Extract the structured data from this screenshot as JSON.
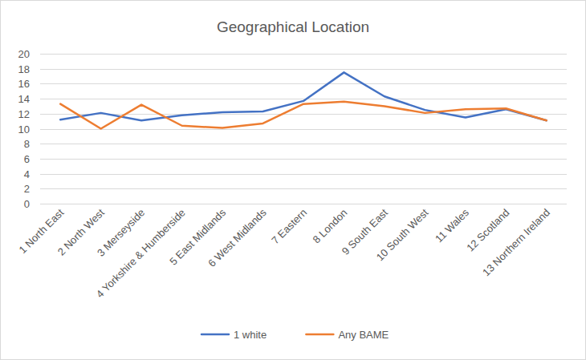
{
  "chart_data": {
    "type": "line",
    "title": "Geographical Location",
    "categories": [
      "1 North East",
      "2 North West",
      "3 Merseyside",
      "4 Yorkshire & Humberside",
      "5 East Midlands",
      "6 West Midlands",
      "7 Eastern",
      "8 London",
      "9 South East",
      "10 South West",
      "11 Wales",
      "12 Scotland",
      "13 Northern Ireland"
    ],
    "series": [
      {
        "name": "1 white",
        "color": "#4472c4",
        "values": [
          11.2,
          12.1,
          11.1,
          11.8,
          12.2,
          12.3,
          13.7,
          17.5,
          14.3,
          12.5,
          11.5,
          12.6,
          11.1
        ]
      },
      {
        "name": "Any BAME",
        "color": "#ed7d31",
        "values": [
          13.3,
          10.0,
          13.2,
          10.4,
          10.1,
          10.7,
          13.3,
          13.6,
          13.0,
          12.1,
          12.6,
          12.7,
          11.1
        ]
      }
    ],
    "ylim": [
      0,
      20
    ],
    "yticks": [
      0,
      2,
      4,
      6,
      8,
      10,
      12,
      14,
      16,
      18,
      20
    ],
    "grid": true,
    "legend": "bottom"
  }
}
